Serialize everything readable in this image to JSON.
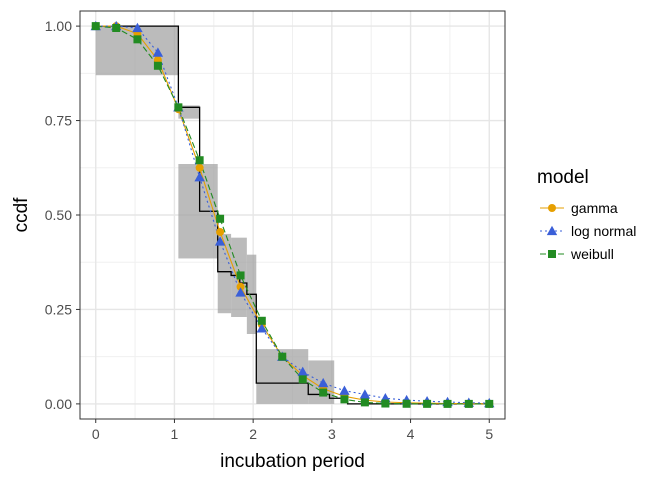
{
  "chart_data": {
    "type": "line",
    "xlabel": "incubation period",
    "ylabel": "ccdf",
    "xlim": [
      -0.2,
      5.2
    ],
    "ylim": [
      -0.04,
      1.04
    ],
    "x_ticks": [
      0,
      1,
      2,
      3,
      4,
      5
    ],
    "x_tick_labels": [
      "0",
      "1",
      "2",
      "3",
      "4",
      "5"
    ],
    "y_ticks": [
      0,
      0.25,
      0.5,
      0.75,
      1.0
    ],
    "y_tick_labels": [
      "0.00",
      "0.25",
      "0.50",
      "0.75",
      "1.00"
    ],
    "grid": true,
    "legend": {
      "title": "model",
      "position": "right",
      "entries": [
        {
          "label": "gamma",
          "color": "#E69F00",
          "marker": "circle",
          "linestyle": "solid"
        },
        {
          "label": "log normal",
          "color": "#3A5FD8",
          "marker": "triangle",
          "linestyle": "dotted"
        },
        {
          "label": "weibull",
          "color": "#228B22",
          "marker": "square",
          "linestyle": "dashed"
        }
      ]
    },
    "x": [
      0,
      0.26,
      0.53,
      0.79,
      1.05,
      1.32,
      1.58,
      1.84,
      2.11,
      2.37,
      2.63,
      2.89,
      3.16,
      3.42,
      3.68,
      3.95,
      4.21,
      4.47,
      4.74,
      5.0
    ],
    "series": [
      {
        "name": "gamma",
        "color": "#E69F00",
        "marker": "circle",
        "values": [
          1.0,
          1.0,
          0.98,
          0.91,
          0.78,
          0.625,
          0.455,
          0.31,
          0.21,
          0.125,
          0.075,
          0.04,
          0.02,
          0.01,
          0.005,
          0.003,
          0.002,
          0.001,
          0.0005,
          0.0002
        ]
      },
      {
        "name": "log normal",
        "color": "#3A5FD8",
        "marker": "triangle",
        "values": [
          1.0,
          1.0,
          0.995,
          0.93,
          0.785,
          0.6,
          0.43,
          0.295,
          0.2,
          0.125,
          0.085,
          0.055,
          0.035,
          0.025,
          0.015,
          0.01,
          0.007,
          0.005,
          0.003,
          0.002
        ]
      },
      {
        "name": "weibull",
        "color": "#228B22",
        "marker": "square",
        "values": [
          1.0,
          0.995,
          0.965,
          0.895,
          0.785,
          0.645,
          0.49,
          0.34,
          0.22,
          0.125,
          0.065,
          0.03,
          0.012,
          0.004,
          0.001,
          0.0003,
          0.0001,
          0.0,
          0.0,
          0.0
        ]
      }
    ],
    "empirical_step": {
      "color": "#000000",
      "x": [
        0,
        1.05,
        1.05,
        1.32,
        1.32,
        1.55,
        1.55,
        1.72,
        1.72,
        1.83,
        1.83,
        1.92,
        1.92,
        2.04,
        2.04,
        2.7,
        2.7,
        2.97,
        2.97,
        3.2,
        3.2,
        5.0
      ],
      "y": [
        1.0,
        1.0,
        0.785,
        0.785,
        0.51,
        0.51,
        0.35,
        0.35,
        0.34,
        0.34,
        0.32,
        0.32,
        0.29,
        0.29,
        0.055,
        0.055,
        0.025,
        0.025,
        0.015,
        0.015,
        0.0,
        0.0
      ]
    },
    "confidence_band": {
      "color": "#9e9e9e",
      "rects": [
        {
          "x0": 0.0,
          "x1": 1.05,
          "y0": 0.87,
          "y1": 1.0
        },
        {
          "x0": 1.05,
          "x1": 1.32,
          "y0": 0.755,
          "y1": 0.79
        },
        {
          "x0": 1.05,
          "x1": 1.55,
          "y0": 0.385,
          "y1": 0.635
        },
        {
          "x0": 1.55,
          "x1": 1.72,
          "y0": 0.24,
          "y1": 0.45
        },
        {
          "x0": 1.72,
          "x1": 1.92,
          "y0": 0.23,
          "y1": 0.44
        },
        {
          "x0": 1.92,
          "x1": 2.04,
          "y0": 0.185,
          "y1": 0.395
        },
        {
          "x0": 2.04,
          "x1": 2.7,
          "y0": 0.0,
          "y1": 0.145
        },
        {
          "x0": 2.7,
          "x1": 3.03,
          "y0": 0.0,
          "y1": 0.115
        }
      ]
    }
  }
}
